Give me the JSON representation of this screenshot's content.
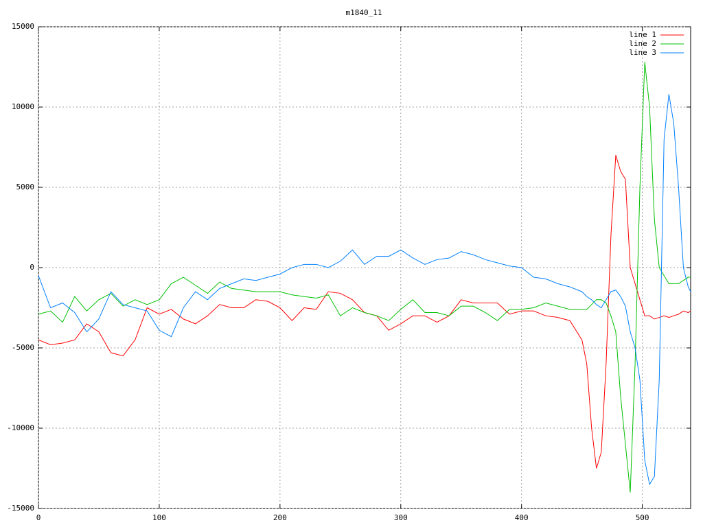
{
  "chart_data": {
    "type": "line",
    "title": "m1840_11",
    "x": [
      0,
      10,
      20,
      30,
      40,
      50,
      60,
      70,
      80,
      90,
      100,
      110,
      120,
      130,
      140,
      150,
      160,
      170,
      180,
      190,
      200,
      210,
      220,
      230,
      240,
      250,
      260,
      270,
      280,
      290,
      300,
      310,
      320,
      330,
      340,
      350,
      360,
      370,
      380,
      390,
      400,
      410,
      420,
      430,
      440,
      450,
      454,
      458,
      462,
      466,
      470,
      474,
      478,
      482,
      486,
      490,
      494,
      498,
      502,
      506,
      510,
      514,
      518,
      522,
      526,
      530,
      534,
      538,
      540
    ],
    "series": [
      {
        "name": "line 1",
        "color": "#ff0000",
        "values": [
          -4500,
          -4800,
          -4700,
          -4500,
          -3500,
          -4000,
          -5300,
          -5500,
          -4500,
          -2500,
          -2900,
          -2600,
          -3200,
          -3500,
          -3000,
          -2300,
          -2500,
          -2500,
          -2000,
          -2100,
          -2500,
          -3300,
          -2500,
          -2600,
          -1500,
          -1600,
          -2000,
          -2800,
          -3000,
          -3900,
          -3500,
          -3000,
          -3000,
          -3400,
          -3000,
          -2000,
          -2200,
          -2200,
          -2200,
          -2900,
          -2700,
          -2700,
          -3000,
          -3100,
          -3300,
          -4500,
          -6000,
          -10000,
          -12500,
          -11500,
          -6000,
          2000,
          7000,
          6000,
          5500,
          0,
          -1000,
          -2000,
          -3000,
          -3000,
          -3200,
          -3100,
          -3000,
          -3100,
          -3000,
          -2900,
          -2700,
          -2800,
          -2700
        ]
      },
      {
        "name": "line 2",
        "color": "#00c000",
        "values": [
          -2900,
          -2700,
          -3400,
          -1800,
          -2700,
          -2000,
          -1600,
          -2400,
          -2000,
          -2300,
          -2000,
          -1000,
          -600,
          -1100,
          -1600,
          -900,
          -1300,
          -1400,
          -1500,
          -1500,
          -1500,
          -1700,
          -1800,
          -1900,
          -1700,
          -3000,
          -2500,
          -2800,
          -3000,
          -3300,
          -2600,
          -2000,
          -2800,
          -2800,
          -3000,
          -2400,
          -2400,
          -2800,
          -3300,
          -2600,
          -2600,
          -2500,
          -2200,
          -2400,
          -2600,
          -2600,
          -2600,
          -2300,
          -2000,
          -2000,
          -2200,
          -3000,
          -4000,
          -8000,
          -11000,
          -14000,
          -6000,
          5000,
          12800,
          10000,
          3000,
          0,
          -500,
          -1000,
          -1000,
          -1000,
          -800,
          -600,
          -600
        ]
      },
      {
        "name": "line 3",
        "color": "#0080ff",
        "values": [
          -500,
          -2500,
          -2200,
          -2800,
          -4000,
          -3200,
          -1500,
          -2300,
          -2500,
          -2700,
          -3900,
          -4300,
          -2500,
          -1500,
          -2000,
          -1300,
          -1000,
          -700,
          -800,
          -600,
          -400,
          0,
          200,
          200,
          0,
          400,
          1100,
          200,
          700,
          700,
          1100,
          600,
          200,
          500,
          600,
          1000,
          800,
          500,
          300,
          100,
          0,
          -600,
          -700,
          -1000,
          -1200,
          -1500,
          -1800,
          -2000,
          -2300,
          -2500,
          -2000,
          -1500,
          -1400,
          -1800,
          -2400,
          -4000,
          -5000,
          -7000,
          -12000,
          -13500,
          -13000,
          -7000,
          8000,
          10800,
          9000,
          5000,
          0,
          -1200,
          -1500
        ]
      }
    ],
    "xlim": [
      0,
      540
    ],
    "xticks": [
      0,
      100,
      200,
      300,
      400,
      500
    ],
    "ylim": [
      -15000,
      15000
    ],
    "yticks": [
      -15000,
      -10000,
      -5000,
      0,
      5000,
      10000,
      15000
    ],
    "grid": true,
    "legend": "top-right"
  }
}
